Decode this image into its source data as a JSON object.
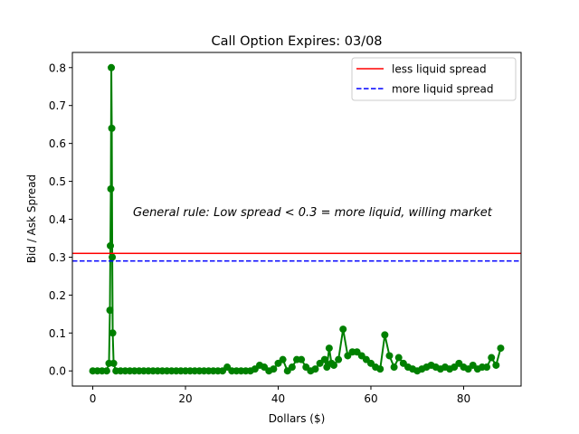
{
  "chart_data": {
    "type": "line",
    "title": "Call Option Expires: 03/08",
    "xlabel": "Dollars ($)",
    "ylabel": "Bid / Ask Spread",
    "xlim": [
      -4.4,
      92.4
    ],
    "ylim": [
      -0.04,
      0.84
    ],
    "xticks": [
      0,
      20,
      40,
      60,
      80
    ],
    "yticks": [
      0.0,
      0.1,
      0.2,
      0.3,
      0.4,
      0.5,
      0.6,
      0.7,
      0.8
    ],
    "grid": false,
    "legend_position": "top-right",
    "annotation": "General rule: Low spread < 0.3 = more liquid, willing market",
    "reference_lines": [
      {
        "name": "less liquid spread",
        "y": 0.31,
        "color": "#ff0000",
        "style": "solid"
      },
      {
        "name": "more liquid spread",
        "y": 0.29,
        "color": "#0000ff",
        "style": "dashed"
      }
    ],
    "series": [
      {
        "color": "#008000",
        "marker": "circle",
        "x": [
          0,
          1,
          2,
          3,
          3.5,
          3.7,
          3.8,
          3.9,
          4,
          4.1,
          4.2,
          4.3,
          4.5,
          5,
          6,
          7,
          8,
          9,
          10,
          11,
          12,
          13,
          14,
          15,
          16,
          17,
          18,
          19,
          20,
          21,
          22,
          23,
          24,
          25,
          26,
          27,
          28,
          29,
          30,
          31,
          32,
          33,
          34,
          35,
          36,
          37,
          38,
          39,
          40,
          41,
          42,
          43,
          44,
          45,
          46,
          47,
          48,
          49,
          50,
          50.5,
          51,
          51.5,
          52,
          53,
          54,
          55,
          56,
          57,
          58,
          59,
          60,
          61,
          62,
          63,
          64,
          65,
          66,
          67,
          68,
          69,
          70,
          71,
          72,
          73,
          74,
          75,
          76,
          77,
          78,
          79,
          80,
          81,
          82,
          83,
          84,
          85,
          86,
          87,
          88
        ],
        "y": [
          0,
          0,
          0,
          0,
          0.02,
          0.16,
          0.33,
          0.48,
          0.8,
          0.64,
          0.3,
          0.1,
          0.02,
          0,
          0,
          0,
          0,
          0,
          0,
          0,
          0,
          0,
          0,
          0,
          0,
          0,
          0,
          0,
          0,
          0,
          0,
          0,
          0,
          0,
          0,
          0,
          0,
          0.01,
          0,
          0,
          0,
          0,
          0,
          0.005,
          0.015,
          0.01,
          0,
          0.005,
          0.02,
          0.03,
          0,
          0.01,
          0.03,
          0.03,
          0.01,
          0,
          0.005,
          0.02,
          0.03,
          0.01,
          0.06,
          0.02,
          0.015,
          0.03,
          0.11,
          0.04,
          0.05,
          0.05,
          0.04,
          0.03,
          0.02,
          0.01,
          0.005,
          0.095,
          0.04,
          0.01,
          0.035,
          0.02,
          0.01,
          0.005,
          0,
          0.005,
          0.01,
          0.015,
          0.01,
          0.005,
          0.01,
          0.005,
          0.01,
          0.02,
          0.01,
          0.005,
          0.015,
          0.005,
          0.01,
          0.01,
          0.035,
          0.015,
          0.06
        ]
      }
    ]
  }
}
